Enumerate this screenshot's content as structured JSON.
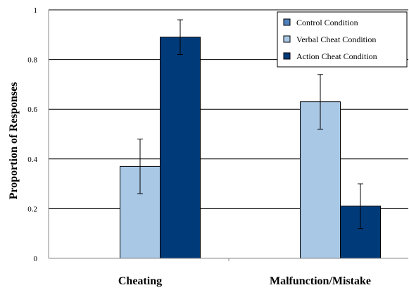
{
  "chart_data": {
    "type": "bar",
    "title": "",
    "xlabel": "",
    "ylabel": "Proportion of Responses",
    "ylim": [
      0,
      1
    ],
    "yticks": [
      "0",
      "0.2",
      "0.4",
      "0.6",
      "0.8",
      "1"
    ],
    "ytick_values": [
      0,
      0.2,
      0.4,
      0.6,
      0.8,
      1
    ],
    "grid": true,
    "legend_position": "top-right",
    "categories": [
      "Cheating",
      "Malfunction/Mistake"
    ],
    "series": [
      {
        "name": "Control Condition",
        "color": "#4f81bd",
        "values": [
          0,
          0
        ],
        "errors": [
          0,
          0
        ]
      },
      {
        "name": "Verbal Cheat Condition",
        "color": "#a9c8e6",
        "values": [
          0.37,
          0.63
        ],
        "errors": [
          0.11,
          0.11
        ]
      },
      {
        "name": "Action Cheat Condition",
        "color": "#003a78",
        "values": [
          0.89,
          0.21
        ],
        "errors": [
          0.07,
          0.09
        ]
      }
    ]
  }
}
